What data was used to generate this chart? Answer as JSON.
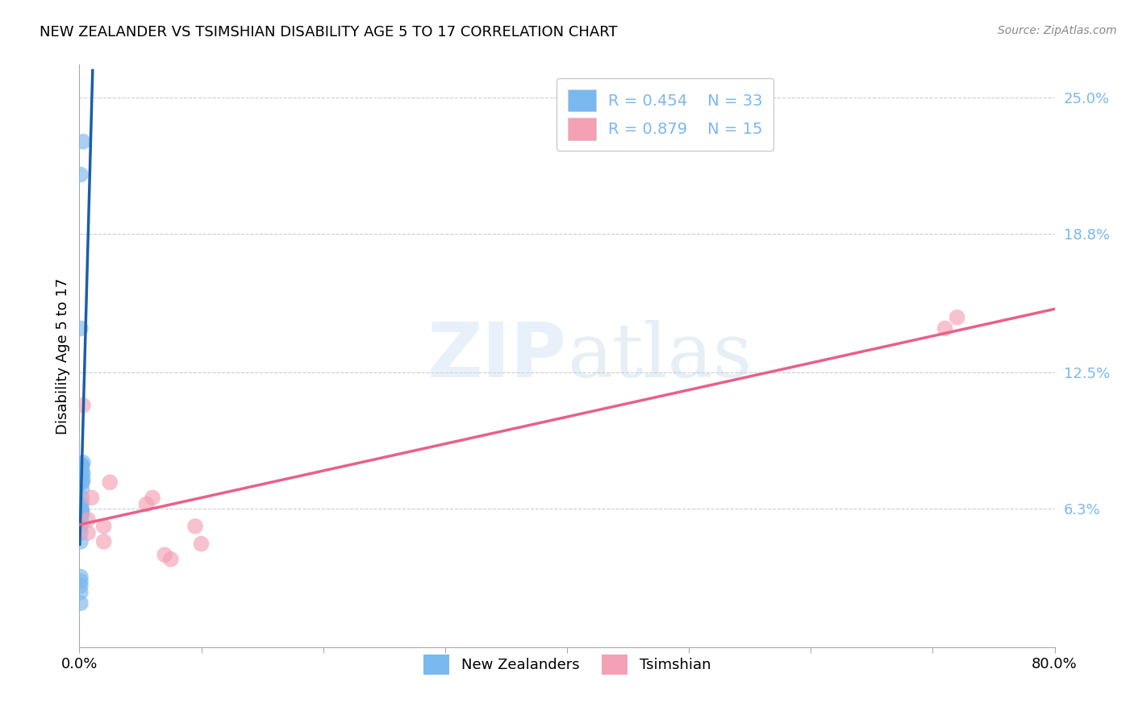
{
  "title": "NEW ZEALANDER VS TSIMSHIAN DISABILITY AGE 5 TO 17 CORRELATION CHART",
  "source": "Source: ZipAtlas.com",
  "ylabel": "Disability Age 5 to 17",
  "xlim": [
    0.0,
    0.8
  ],
  "ylim": [
    0.0,
    0.265
  ],
  "ytick_positions": [
    0.063,
    0.125,
    0.188,
    0.25
  ],
  "ytick_labels": [
    "6.3%",
    "12.5%",
    "18.8%",
    "25.0%"
  ],
  "legend_R_blue": "R = 0.454",
  "legend_N_blue": "N = 33",
  "legend_R_pink": "R = 0.879",
  "legend_N_pink": "N = 15",
  "blue_color": "#7ab8f0",
  "pink_color": "#f4a0b5",
  "blue_line_color": "#1a5fa8",
  "pink_line_color": "#e8608a",
  "nz_x": [
    0.001,
    0.003,
    0.001,
    0.001,
    0.002,
    0.002,
    0.002,
    0.002,
    0.003,
    0.003,
    0.002,
    0.003,
    0.001,
    0.002,
    0.001,
    0.002,
    0.001,
    0.001,
    0.002,
    0.001,
    0.001,
    0.002,
    0.002,
    0.001,
    0.001,
    0.001,
    0.001,
    0.002,
    0.002,
    0.001,
    0.001,
    0.001,
    0.001
  ],
  "nz_y": [
    0.215,
    0.23,
    0.145,
    0.083,
    0.075,
    0.08,
    0.078,
    0.082,
    0.076,
    0.084,
    0.083,
    0.079,
    0.062,
    0.075,
    0.063,
    0.068,
    0.058,
    0.055,
    0.06,
    0.052,
    0.048,
    0.062,
    0.072,
    0.065,
    0.028,
    0.032,
    0.03,
    0.065,
    0.062,
    0.063,
    0.06,
    0.025,
    0.02
  ],
  "ts_x": [
    0.003,
    0.01,
    0.007,
    0.007,
    0.055,
    0.06,
    0.02,
    0.02,
    0.07,
    0.075,
    0.095,
    0.1,
    0.71,
    0.72,
    0.025
  ],
  "ts_y": [
    0.11,
    0.068,
    0.052,
    0.058,
    0.065,
    0.068,
    0.055,
    0.048,
    0.042,
    0.04,
    0.055,
    0.047,
    0.145,
    0.15,
    0.075
  ]
}
